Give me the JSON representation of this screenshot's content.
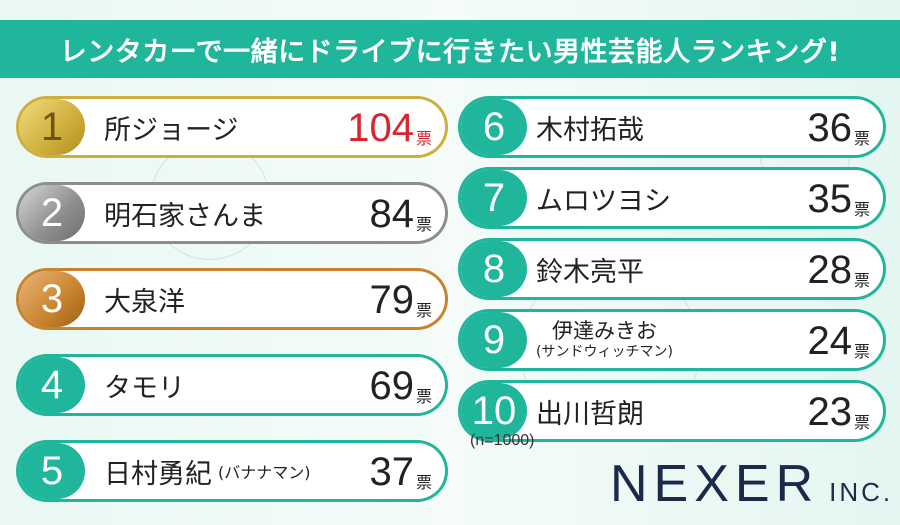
{
  "title": "レンタカーで一緒にドライブに行きたい男性芸能人ランキング!",
  "note": "(n=1000)",
  "logo": {
    "main": "NEXER",
    "suffix": "INC."
  },
  "colors": {
    "header": "#1fb69c",
    "teal": "#1fb69c",
    "gold": "#cfae3b",
    "silver": "#8d8d8d",
    "bronze": "#c9832d",
    "highlight_red": "#d7262f"
  },
  "chart_data": {
    "type": "table",
    "title": "レンタカーで一緒にドライブに行きたい男性芸能人ランキング!",
    "unit": "票",
    "sample": "(n=1000)",
    "rows": [
      {
        "rank": "1",
        "name": "所ジョージ",
        "sub": "",
        "votes": 104,
        "unit": "票"
      },
      {
        "rank": "2",
        "name": "明石家さんま",
        "sub": "",
        "votes": 84,
        "unit": "票"
      },
      {
        "rank": "3",
        "name": "大泉洋",
        "sub": "",
        "votes": 79,
        "unit": "票"
      },
      {
        "rank": "4",
        "name": "タモリ",
        "sub": "",
        "votes": 69,
        "unit": "票"
      },
      {
        "rank": "5",
        "name": "日村勇紀",
        "sub": "(バナナマン)",
        "votes": 37,
        "unit": "票"
      },
      {
        "rank": "6",
        "name": "木村拓哉",
        "sub": "",
        "votes": 36,
        "unit": "票"
      },
      {
        "rank": "7",
        "name": "ムロツヨシ",
        "sub": "",
        "votes": 35,
        "unit": "票"
      },
      {
        "rank": "8",
        "name": "鈴木亮平",
        "sub": "",
        "votes": 28,
        "unit": "票"
      },
      {
        "rank": "9",
        "name": "伊達みきお",
        "sub": "(サンドウィッチマン)",
        "votes": 24,
        "unit": "票"
      },
      {
        "rank": "10",
        "name": "出川哲朗",
        "sub": "",
        "votes": 23,
        "unit": "票"
      }
    ]
  }
}
